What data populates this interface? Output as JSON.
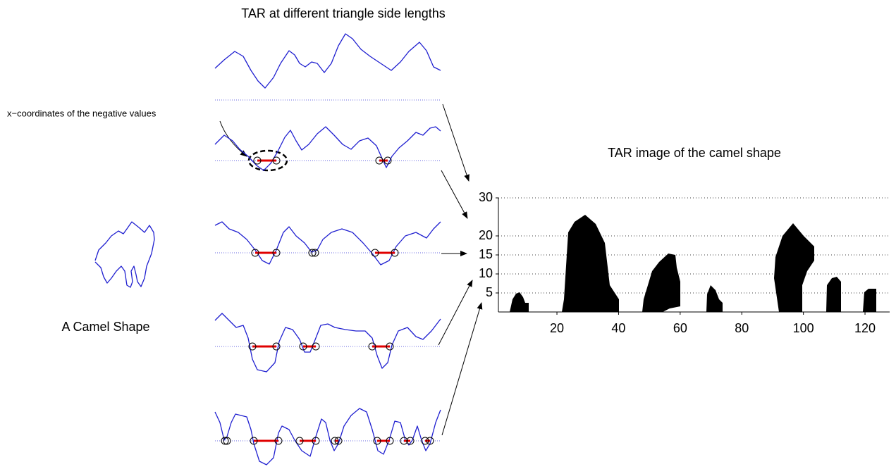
{
  "figure": {
    "title": "TAR at different triangle side lengths",
    "annotation": "x−coordinates of the negative values",
    "shape_label": "A Camel Shape",
    "image": {
      "title": "TAR image of the camel shape",
      "xlim": [
        1,
        128
      ],
      "ylim": [
        0,
        30
      ],
      "xticks": [
        20,
        40,
        60,
        80,
        100,
        120
      ],
      "yticks": [
        5,
        10,
        15,
        20,
        30
      ]
    }
  }
}
